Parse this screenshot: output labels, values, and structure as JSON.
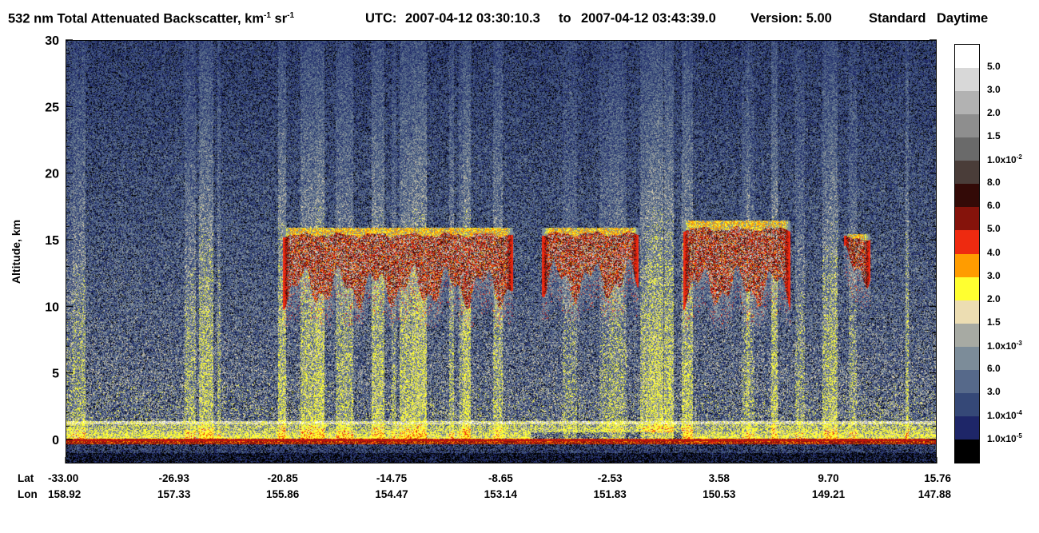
{
  "title": {
    "product": "532 nm Total Attenuated Backscatter, km",
    "units_exp1": "-1",
    "units_mid": " sr",
    "units_exp2": "-1",
    "utc_label": "UTC:",
    "utc_start": "2007-04-12 03:30:10.3",
    "to_word": "to",
    "utc_end": "2007-04-12 03:43:39.0",
    "version_label": "Version: 5.00",
    "product_level": "Standard",
    "lighting": "Daytime"
  },
  "chart_data": {
    "type": "heatmap",
    "ylabel": "Altitude, km",
    "ylim": [
      -1.8,
      30
    ],
    "yticks": [
      0,
      5,
      10,
      15,
      20,
      25,
      30
    ],
    "x_row_labels": [
      "Lat",
      "Lon"
    ],
    "xlim": [
      -33.0,
      15.76
    ],
    "xticks": [
      {
        "lat": "-33.00",
        "lon": "158.92",
        "lat_value": -33.0
      },
      {
        "lat": "-26.93",
        "lon": "157.33",
        "lat_value": -26.93
      },
      {
        "lat": "-20.85",
        "lon": "155.86",
        "lat_value": -20.85
      },
      {
        "lat": "-14.75",
        "lon": "154.47",
        "lat_value": -14.75
      },
      {
        "lat": "-8.65",
        "lon": "153.14",
        "lat_value": -8.65
      },
      {
        "lat": "-2.53",
        "lon": "151.83",
        "lat_value": -2.53
      },
      {
        "lat": "3.58",
        "lon": "150.53",
        "lat_value": 3.58
      },
      {
        "lat": "9.70",
        "lon": "149.21",
        "lat_value": 9.7
      },
      {
        "lat": "15.76",
        "lon": "147.88",
        "lat_value": 15.76
      }
    ],
    "colorbar": {
      "colors": [
        "#ffffff",
        "#d8d8d8",
        "#b2b2b2",
        "#8e8e8e",
        "#6a6a6a",
        "#4a3d39",
        "#330a07",
        "#85130b",
        "#ee2a10",
        "#ff9c00",
        "#ffff30",
        "#ecddb2",
        "#a7aaa3",
        "#7c8c99",
        "#56698a",
        "#354877",
        "#1e2668",
        "#000000"
      ],
      "labels": [
        {
          "mantissa": "5.0"
        },
        {
          "mantissa": "3.0"
        },
        {
          "mantissa": "2.0"
        },
        {
          "mantissa": "1.5"
        },
        {
          "mantissa": "1.0x10",
          "exp": "-2"
        },
        {
          "mantissa": "8.0"
        },
        {
          "mantissa": "6.0"
        },
        {
          "mantissa": "5.0"
        },
        {
          "mantissa": "4.0"
        },
        {
          "mantissa": "3.0"
        },
        {
          "mantissa": "2.0"
        },
        {
          "mantissa": "1.5"
        },
        {
          "mantissa": "1.0x10",
          "exp": "-3"
        },
        {
          "mantissa": "6.0"
        },
        {
          "mantissa": "3.0"
        },
        {
          "mantissa": "1.0x10",
          "exp": "-4"
        },
        {
          "mantissa": "1.0x10",
          "exp": "-5"
        }
      ]
    },
    "features": {
      "cirrus_clouds": [
        {
          "lat_start": -20.9,
          "lat_end": -8.0,
          "alt_top": 16.0,
          "alt_bottom": 11.5
        },
        {
          "lat_start": -6.4,
          "lat_end": -1.0,
          "alt_top": 16.0,
          "alt_bottom": 12.0
        },
        {
          "lat_start": 1.5,
          "lat_end": 7.5,
          "alt_top": 16.5,
          "alt_bottom": 11.5
        },
        {
          "lat_start": 10.5,
          "lat_end": 12.0,
          "alt_top": 15.5,
          "alt_bottom": 13.0
        }
      ],
      "boundary_layer": {
        "alt_top": 1.5
      },
      "surface_altitude": 0
    }
  }
}
